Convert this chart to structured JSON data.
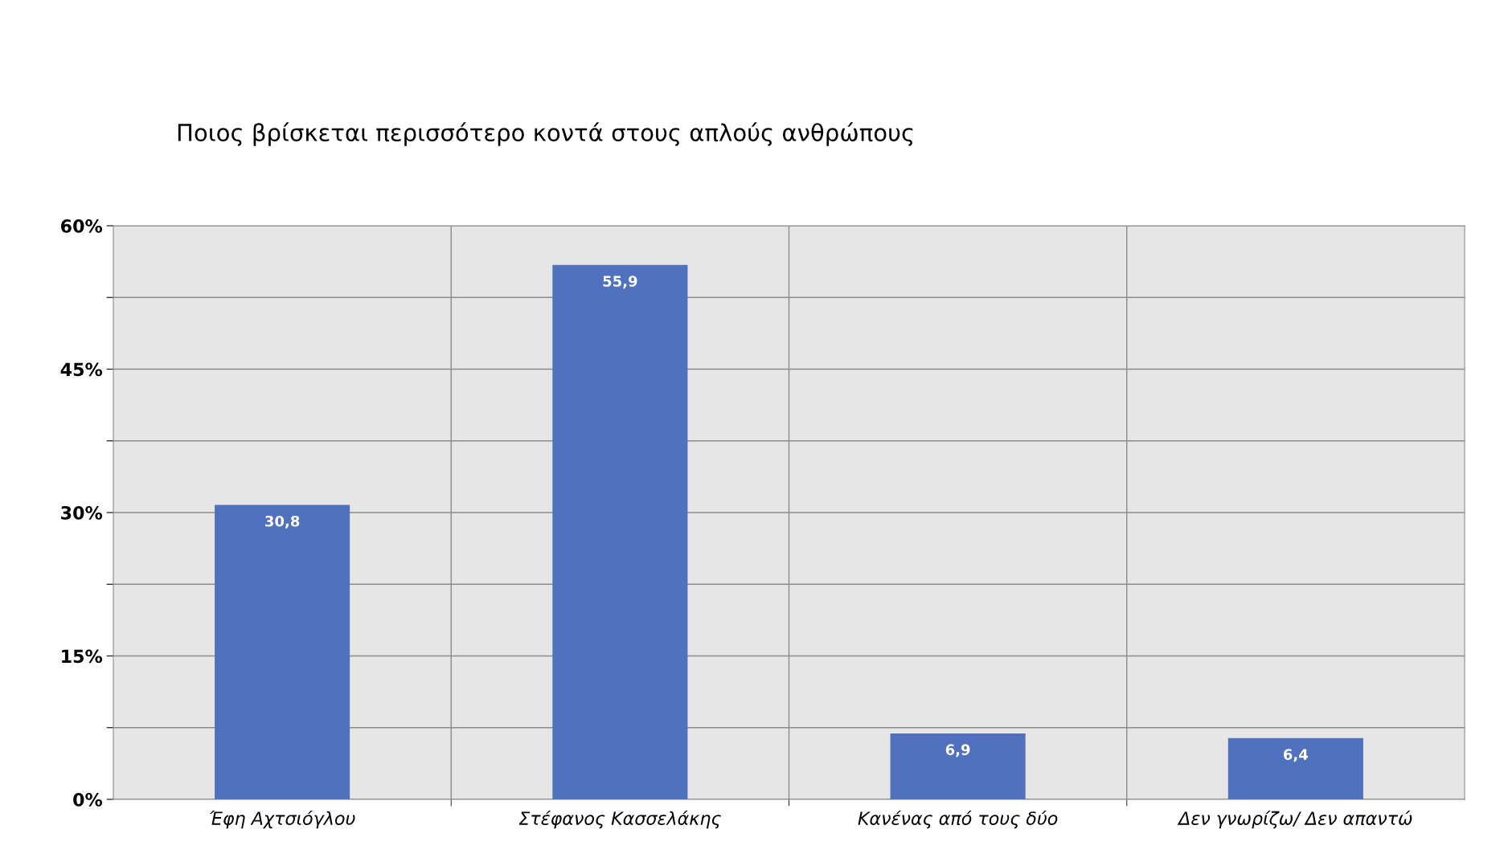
{
  "chart_data": {
    "type": "bar",
    "title": "Ποιος βρίσκεται περισσότερο κοντά στους απλούς ανθρώπους",
    "categories": [
      "Έφη Αχτσιόγλου",
      "Στέφανος Κασσελάκης",
      "Κανένας από τους δύο",
      "Δεν γνωρίζω/ Δεν απαντώ"
    ],
    "values": [
      30.8,
      55.9,
      6.9,
      6.4
    ],
    "value_labels": [
      "30,8",
      "55,9",
      "6,9",
      "6,4"
    ],
    "color": "#4f71be",
    "ylim": [
      0,
      60
    ],
    "yticks": [
      {
        "value": 0,
        "label": "0%"
      },
      {
        "value": 7.5,
        "label": null
      },
      {
        "value": 15,
        "label": "15%"
      },
      {
        "value": 22.5,
        "label": null
      },
      {
        "value": 30,
        "label": "30%"
      },
      {
        "value": 37.5,
        "label": null
      },
      {
        "value": 45,
        "label": "45%"
      },
      {
        "value": 52.5,
        "label": null
      },
      {
        "value": 60,
        "label": "60%"
      }
    ],
    "grid": true
  }
}
